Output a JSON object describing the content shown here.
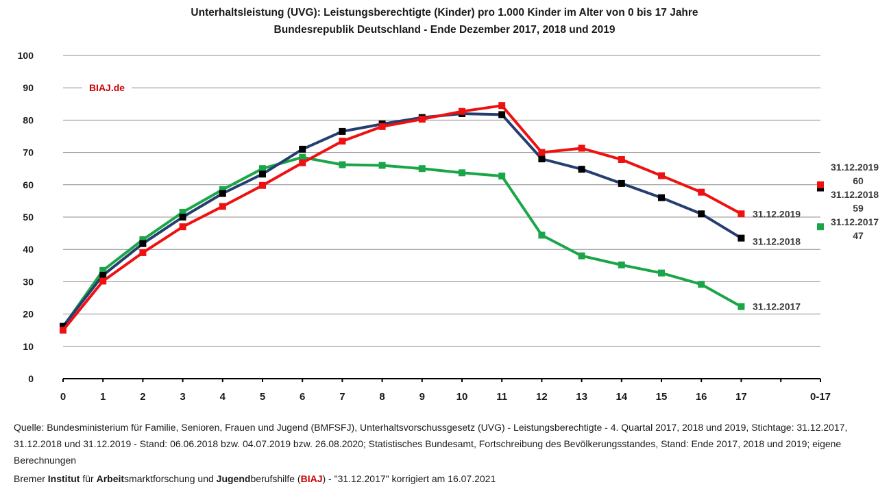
{
  "chart_data": {
    "type": "line",
    "title": "Unterhaltsleistung (UVG): Leistungsberechtigte (Kinder) pro 1.000 Kinder im Alter von 0 bis 17 Jahre",
    "subtitle": "Bundesrepublik Deutschland - Ende Dezember 2017, 2018 und 2019",
    "watermark": "BIAJ.de",
    "xlabel": "",
    "ylabel": "",
    "ylim": [
      0,
      100
    ],
    "yticks": [
      0,
      10,
      20,
      30,
      40,
      50,
      60,
      70,
      80,
      90,
      100
    ],
    "categories": [
      "0",
      "1",
      "2",
      "3",
      "4",
      "5",
      "6",
      "7",
      "8",
      "9",
      "10",
      "11",
      "12",
      "13",
      "14",
      "15",
      "16",
      "17"
    ],
    "total_category": "0-17",
    "series": [
      {
        "name": "31.12.2017",
        "color": "#1aa648",
        "values": [
          16,
          33.5,
          43,
          51.5,
          58.5,
          65,
          68.5,
          66.2,
          66,
          65,
          63.7,
          62.7,
          44.4,
          38,
          35.2,
          32.7,
          29.2,
          22.3
        ],
        "total": 47,
        "end_label": "31.12.2017",
        "total_label_top": "31.12.2017",
        "total_label_bottom": "47"
      },
      {
        "name": "31.12.2018",
        "color": "#253e70",
        "values": [
          16.2,
          32,
          41.8,
          50,
          57.3,
          63.3,
          71,
          76.5,
          78.8,
          80.8,
          82,
          81.7,
          68,
          64.8,
          60.4,
          56,
          51,
          43.5
        ],
        "total": 59,
        "end_label": "31.12.2018",
        "total_label_top": "31.12.2018",
        "total_label_bottom": "59"
      },
      {
        "name": "31.12.2019",
        "color": "#ee1111",
        "values": [
          15,
          30.2,
          39,
          47,
          53.3,
          59.8,
          66.8,
          73.5,
          78,
          80.3,
          82.7,
          84.5,
          70,
          71.3,
          67.8,
          62.8,
          57.7,
          51
        ],
        "total": 60,
        "end_label": "31.12.2019",
        "total_label_top": "31.12.2019",
        "total_label_bottom": "60"
      }
    ]
  },
  "footer": {
    "source_line": "Quelle: Bundesministerium für Familie, Senioren, Frauen und Jugend (BMFSFJ), Unterhaltsvorschussgesetz (UVG) - Leistungsberechtigte - 4. Quartal 2017, 2018 und 2019, Stichtage: 31.12.2017, 31.12.2018 und 31.12.2019 - Stand: 06.06.2018 bzw. 04.07.2019 bzw. 26.08.2020; Statistisches Bundesamt, Fortschreibung des Bevölkerungsstandes, Stand: Ende 2017, 2018 und 2019; eigene Berechnungen",
    "credit": {
      "p1": "Bremer ",
      "b1": "Institut",
      "p2": " für ",
      "b2": "Arbeit",
      "p3": "smarktforschung und ",
      "b3": "Jugend",
      "p4": "berufshilfe (",
      "abbr": "BIAJ",
      "p5": ") - \"31.12.2017\" korrigiert am 16.07.2021"
    }
  }
}
